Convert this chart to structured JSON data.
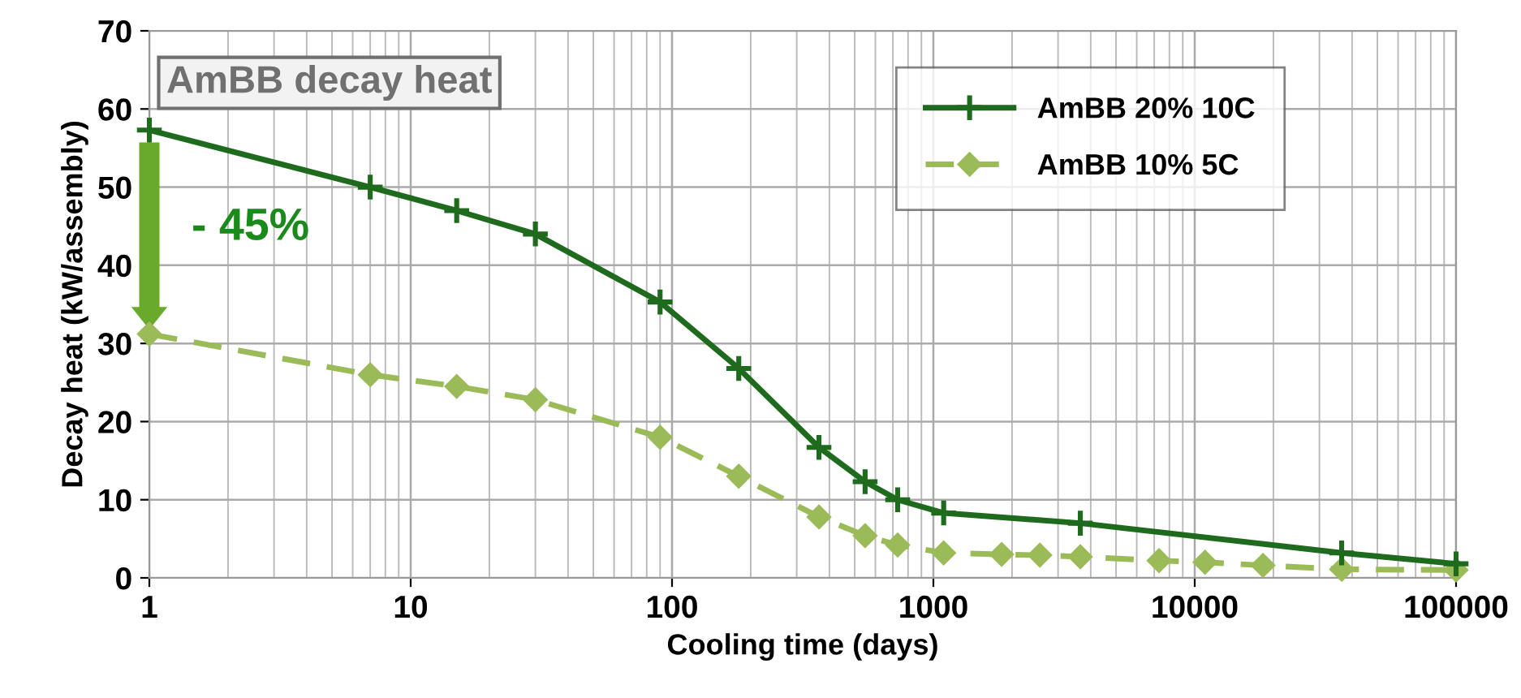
{
  "chart_data": {
    "type": "line",
    "xlabel": "Cooling time (days)",
    "ylabel": "Decay heat (kW/assembly)",
    "log": "x",
    "xlim": [
      1,
      100000
    ],
    "xticks": [
      1,
      10,
      100,
      1000,
      10000,
      100000
    ],
    "ylim": [
      0,
      70
    ],
    "yticks": [
      0,
      10,
      20,
      30,
      40,
      50,
      60,
      70
    ],
    "grid": true,
    "legend": "top right",
    "annotations": [
      "AmBB decay heat",
      "- 45%"
    ],
    "series": [
      {
        "name": "AmBB 20% 10C",
        "color": "#1e6b1e",
        "marker": "cross",
        "line_style": "solid",
        "x": [
          1,
          7,
          15,
          30,
          90,
          180,
          365,
          548,
          730,
          1095,
          3650,
          36500,
          100000
        ],
        "values": [
          57.3,
          50,
          47,
          44,
          35.3,
          26.8,
          16.7,
          12.3,
          10,
          8.3,
          7,
          3.2,
          1.8
        ]
      },
      {
        "name": "AmBB 10% 5C",
        "color": "#9bbb59",
        "marker": "diamond",
        "line_style": "dashed",
        "x": [
          1,
          7,
          15,
          30,
          90,
          180,
          365,
          548,
          730,
          1095,
          1825,
          2555,
          3650,
          7300,
          10950,
          18250,
          36500,
          100000
        ],
        "values": [
          31.2,
          26,
          24.5,
          22.8,
          18,
          13,
          7.8,
          5.4,
          4.2,
          3.2,
          3.0,
          2.9,
          2.7,
          2.2,
          2.0,
          1.6,
          1.1,
          1.0
        ]
      }
    ]
  }
}
